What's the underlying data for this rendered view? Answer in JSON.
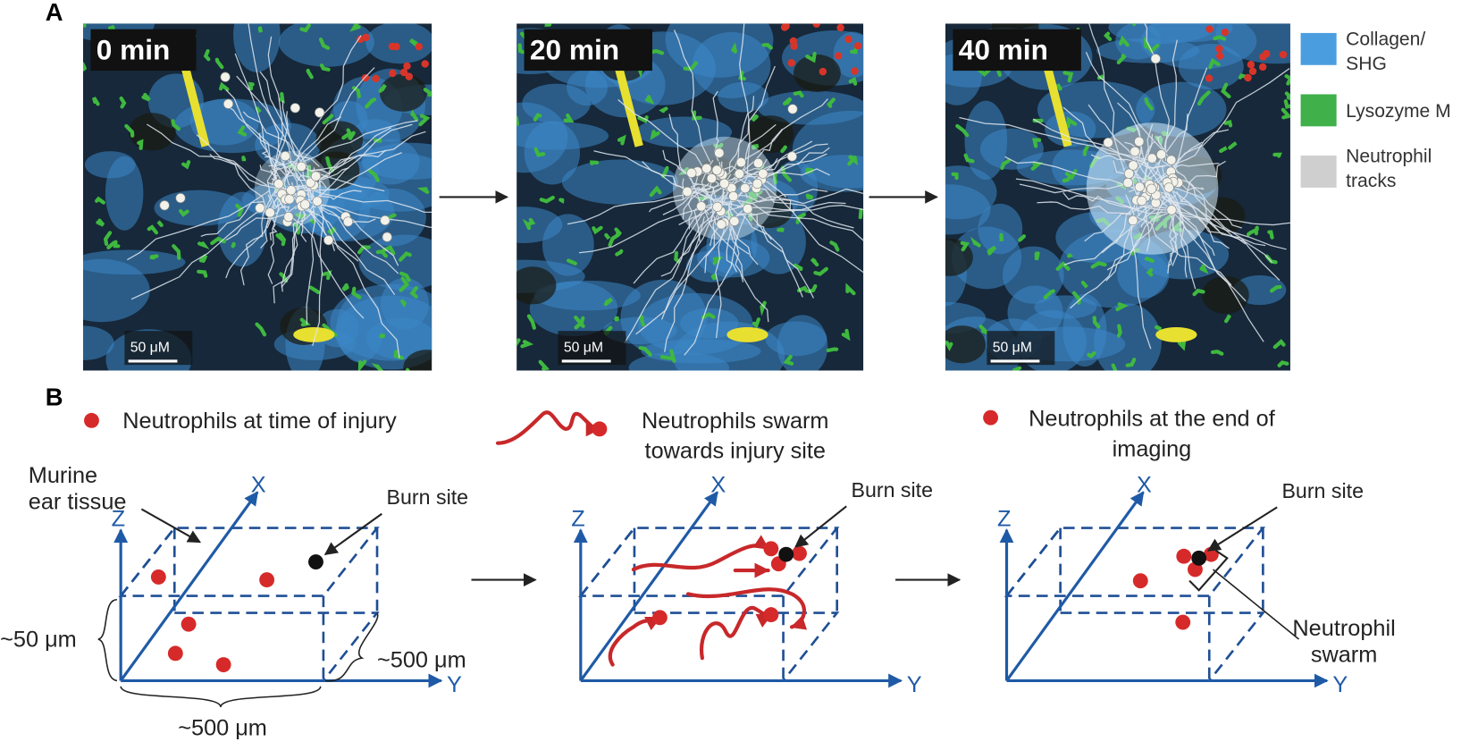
{
  "panel_a": {
    "label": "A",
    "frames": [
      {
        "time": "0 min",
        "scale_bar": "50 μM"
      },
      {
        "time": "20 min",
        "scale_bar": "50 μM"
      },
      {
        "time": "40 min",
        "scale_bar": "50 μM"
      }
    ],
    "legend": [
      {
        "lines": [
          "Collagen/",
          "SHG"
        ]
      },
      {
        "lines": [
          "Lysozyme M"
        ]
      },
      {
        "lines": [
          "Neutrophil",
          "tracks"
        ]
      }
    ]
  },
  "panel_b": {
    "label": "B",
    "legend": [
      {
        "lines": [
          "Neutrophils at time of injury"
        ]
      },
      {
        "lines": [
          "Neutrophils swarm",
          "towards injury site"
        ]
      },
      {
        "lines": [
          "Neutrophils at the end of",
          "imaging"
        ]
      }
    ],
    "diagrams": [
      {
        "x": "X",
        "y": "Y",
        "z": "Z",
        "burn_site": "Burn site",
        "tissue": [
          "Murine",
          "ear tissue"
        ],
        "height": "~50 μm",
        "depth": "~500 μm",
        "width": "~500 μm"
      },
      {
        "x": "X",
        "y": "Y",
        "z": "Z",
        "burn_site": "Burn site"
      },
      {
        "x": "X",
        "y": "Y",
        "z": "Z",
        "burn_site": "Burn site",
        "swarm": [
          "Neutrophil",
          "swarm"
        ]
      }
    ]
  }
}
